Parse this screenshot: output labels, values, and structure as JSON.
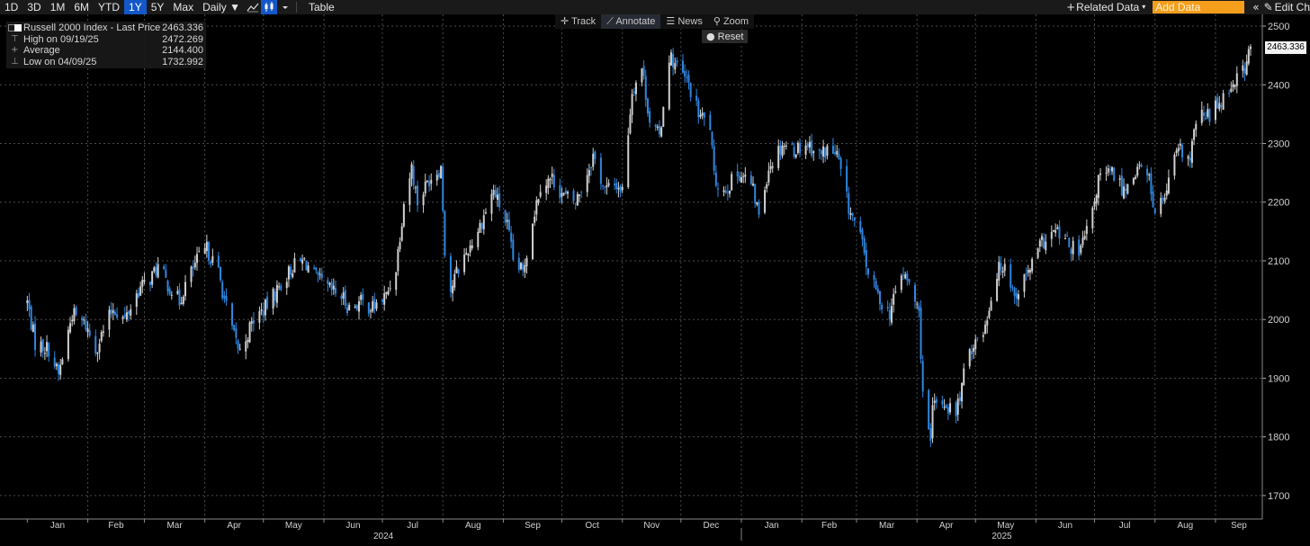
{
  "toolbar": {
    "periods": [
      "1D",
      "3D",
      "1M",
      "6M",
      "YTD",
      "1Y",
      "5Y",
      "Max"
    ],
    "active_period": "1Y",
    "frequency": "Daily ▼",
    "table_label": "Table",
    "related_data": "Related Data",
    "add_data_placeholder": "Add Data",
    "edit_chart": "Edit Ch",
    "icons": [
      "line-chart-icon",
      "candlestick-icon",
      "dropdown-caret-icon",
      "collapse-panel-icon",
      "pencil-icon"
    ]
  },
  "chart_tools": {
    "track": "Track",
    "annotate": "Annotate",
    "news": "News",
    "zoom": "Zoom",
    "reset": "Reset"
  },
  "legend": {
    "title": "Russell 2000 Index - Last Price",
    "last_value": "2463.336",
    "high_label": "High on 09/19/25",
    "high_value": "2472.269",
    "avg_label": "Average",
    "avg_value": "2144.400",
    "low_label": "Low on 04/09/25",
    "low_value": "1732.992"
  },
  "chart_data": {
    "type": "candlestick",
    "title": "Russell 2000 Index - Last Price",
    "ylim": [
      1660,
      2520
    ],
    "yticks": [
      1700,
      1800,
      1900,
      2000,
      2100,
      2200,
      2300,
      2400,
      2500
    ],
    "y_tick_labels": [
      "1700",
      "1800",
      "1900",
      "2000",
      "2100",
      "2200",
      "2300",
      "2400",
      "2500"
    ],
    "last_price": 2463.336,
    "last_price_label": "2463.336",
    "high": 2472.269,
    "average": 2144.4,
    "low": 1732.992,
    "months": [
      "Jan",
      "Feb",
      "Mar",
      "Apr",
      "May",
      "Jun",
      "Jul",
      "Aug",
      "Sep",
      "Oct",
      "Nov",
      "Dec",
      "Jan",
      "Feb",
      "Mar",
      "Apr",
      "May",
      "Jun",
      "Jul",
      "Aug",
      "Sep"
    ],
    "years": [
      "2024",
      "2025"
    ],
    "up_color": "#d0d0d0",
    "down_color": "#2f86e0",
    "grid": true,
    "close_path": [
      [
        "2024-01-01",
        2030
      ],
      [
        "2024-01-05",
        1960
      ],
      [
        "2024-01-12",
        1950
      ],
      [
        "2024-01-17",
        1905
      ],
      [
        "2024-01-24",
        2010
      ],
      [
        "2024-01-31",
        1990
      ],
      [
        "2024-02-05",
        1950
      ],
      [
        "2024-02-09",
        1980
      ],
      [
        "2024-02-14",
        2020
      ],
      [
        "2024-02-20",
        2000
      ],
      [
        "2024-02-27",
        2050
      ],
      [
        "2024-03-04",
        2070
      ],
      [
        "2024-03-08",
        2090
      ],
      [
        "2024-03-13",
        2060
      ],
      [
        "2024-03-19",
        2030
      ],
      [
        "2024-03-22",
        2060
      ],
      [
        "2024-03-28",
        2100
      ],
      [
        "2024-04-02",
        2120
      ],
      [
        "2024-04-08",
        2080
      ],
      [
        "2024-04-12",
        2020
      ],
      [
        "2024-04-16",
        1970
      ],
      [
        "2024-04-19",
        1945
      ],
      [
        "2024-04-26",
        2000
      ],
      [
        "2024-05-02",
        2020
      ],
      [
        "2024-05-10",
        2060
      ],
      [
        "2024-05-16",
        2090
      ],
      [
        "2024-05-22",
        2100
      ],
      [
        "2024-05-28",
        2070
      ],
      [
        "2024-06-04",
        2050
      ],
      [
        "2024-06-10",
        2040
      ],
      [
        "2024-06-14",
        2020
      ],
      [
        "2024-06-20",
        2030
      ],
      [
        "2024-06-26",
        2020
      ],
      [
        "2024-07-03",
        2040
      ],
      [
        "2024-07-08",
        2090
      ],
      [
        "2024-07-12",
        2200
      ],
      [
        "2024-07-16",
        2260
      ],
      [
        "2024-07-19",
        2200
      ],
      [
        "2024-07-25",
        2240
      ],
      [
        "2024-07-31",
        2260
      ],
      [
        "2024-08-02",
        2120
      ],
      [
        "2024-08-05",
        2050
      ],
      [
        "2024-08-08",
        2080
      ],
      [
        "2024-08-14",
        2120
      ],
      [
        "2024-08-20",
        2160
      ],
      [
        "2024-08-27",
        2220
      ],
      [
        "2024-09-03",
        2160
      ],
      [
        "2024-09-06",
        2100
      ],
      [
        "2024-09-11",
        2080
      ],
      [
        "2024-09-16",
        2170
      ],
      [
        "2024-09-20",
        2230
      ],
      [
        "2024-09-26",
        2240
      ],
      [
        "2024-10-02",
        2210
      ],
      [
        "2024-10-08",
        2200
      ],
      [
        "2024-10-14",
        2250
      ],
      [
        "2024-10-17",
        2280
      ],
      [
        "2024-10-23",
        2220
      ],
      [
        "2024-10-29",
        2230
      ],
      [
        "2024-11-01",
        2220
      ],
      [
        "2024-11-06",
        2390
      ],
      [
        "2024-11-11",
        2430
      ],
      [
        "2024-11-15",
        2340
      ],
      [
        "2024-11-20",
        2310
      ],
      [
        "2024-11-25",
        2450
      ],
      [
        "2024-11-29",
        2430
      ],
      [
        "2024-12-05",
        2400
      ],
      [
        "2024-12-10",
        2350
      ],
      [
        "2024-12-16",
        2330
      ],
      [
        "2024-12-18",
        2240
      ],
      [
        "2024-12-23",
        2220
      ],
      [
        "2024-12-31",
        2250
      ],
      [
        "2025-01-06",
        2230
      ],
      [
        "2025-01-10",
        2180
      ],
      [
        "2025-01-15",
        2260
      ],
      [
        "2025-01-22",
        2300
      ],
      [
        "2025-01-28",
        2290
      ],
      [
        "2025-02-04",
        2300
      ],
      [
        "2025-02-10",
        2280
      ],
      [
        "2025-02-14",
        2290
      ],
      [
        "2025-02-19",
        2280
      ],
      [
        "2025-02-25",
        2190
      ],
      [
        "2025-03-03",
        2140
      ],
      [
        "2025-03-07",
        2080
      ],
      [
        "2025-03-12",
        2040
      ],
      [
        "2025-03-18",
        2010
      ],
      [
        "2025-03-24",
        2080
      ],
      [
        "2025-03-28",
        2060
      ],
      [
        "2025-04-02",
        2010
      ],
      [
        "2025-04-04",
        1880
      ],
      [
        "2025-04-08",
        1780
      ],
      [
        "2025-04-09",
        1850
      ],
      [
        "2025-04-14",
        1860
      ],
      [
        "2025-04-21",
        1840
      ],
      [
        "2025-04-28",
        1950
      ],
      [
        "2025-05-05",
        1980
      ],
      [
        "2025-05-12",
        2080
      ],
      [
        "2025-05-16",
        2100
      ],
      [
        "2025-05-21",
        2040
      ],
      [
        "2025-05-28",
        2080
      ],
      [
        "2025-06-04",
        2130
      ],
      [
        "2025-06-11",
        2150
      ],
      [
        "2025-06-17",
        2130
      ],
      [
        "2025-06-23",
        2110
      ],
      [
        "2025-06-30",
        2180
      ],
      [
        "2025-07-03",
        2240
      ],
      [
        "2025-07-10",
        2250
      ],
      [
        "2025-07-16",
        2220
      ],
      [
        "2025-07-23",
        2260
      ],
      [
        "2025-07-29",
        2240
      ],
      [
        "2025-08-01",
        2180
      ],
      [
        "2025-08-06",
        2210
      ],
      [
        "2025-08-13",
        2290
      ],
      [
        "2025-08-19",
        2270
      ],
      [
        "2025-08-22",
        2340
      ],
      [
        "2025-08-29",
        2350
      ],
      [
        "2025-09-05",
        2380
      ],
      [
        "2025-09-11",
        2410
      ],
      [
        "2025-09-16",
        2430
      ],
      [
        "2025-09-19",
        2463
      ]
    ]
  }
}
